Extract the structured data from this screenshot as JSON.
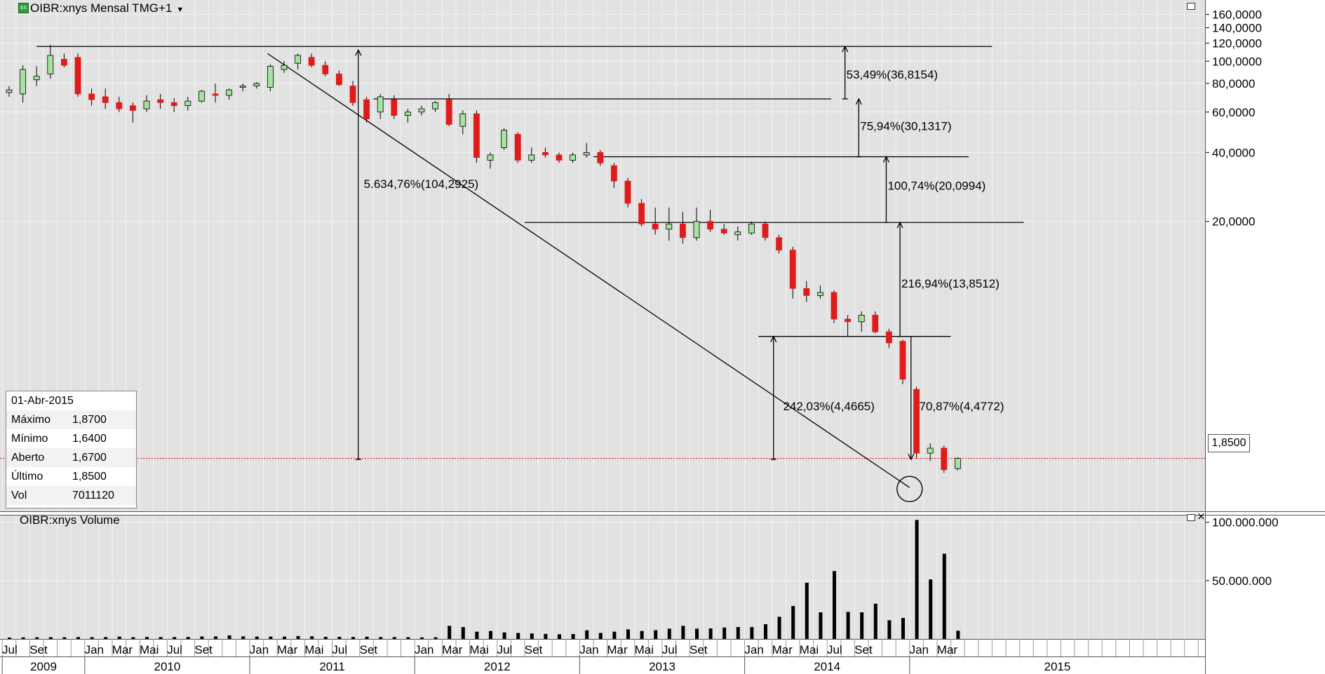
{
  "window": {
    "title": "OIBR:xnys Mensal TMG+1",
    "volume_title": "OIBR:xnys Volume",
    "dropdown_icon": "chevron-down-icon",
    "maximize_icon": "maximize-icon",
    "close_icon": "close-icon",
    "close_glyph": "×"
  },
  "info_box": {
    "date": "01-Abr-2015",
    "rows": [
      {
        "label": "Máximo",
        "value": "1,8700"
      },
      {
        "label": "Mínimo",
        "value": "1,6400"
      },
      {
        "label": "Aberto",
        "value": "1,6700"
      },
      {
        "label": "Último",
        "value": "1,8500"
      },
      {
        "label": "Vol",
        "value": "7011120"
      }
    ]
  },
  "last_price_label": "1,8500",
  "colors": {
    "up": "#a7e3a0",
    "down": "#e01b1b",
    "background": "#e2e2e2",
    "grid": "#f4f4f4",
    "last_line": "#e00000"
  },
  "chart_data": [
    {
      "type": "candlestick",
      "title": "OIBR:xnys Mensal TMG+1",
      "scale": "log",
      "ylim": [
        1.2,
        170
      ],
      "yticks": [
        {
          "value": 160,
          "label": "160,0000"
        },
        {
          "value": 140,
          "label": "140,0000"
        },
        {
          "value": 120,
          "label": "120,0000"
        },
        {
          "value": 100,
          "label": "100,0000"
        },
        {
          "value": 80,
          "label": "80,0000"
        },
        {
          "value": 60,
          "label": "60,0000"
        },
        {
          "value": 40,
          "label": "40,0000"
        },
        {
          "value": 20,
          "label": "20,0000"
        }
      ],
      "x_month_labels": [
        {
          "i": 0,
          "label": "Jul"
        },
        {
          "i": 2,
          "label": "Set"
        },
        {
          "i": 6,
          "label": "Jan"
        },
        {
          "i": 8,
          "label": "Mar"
        },
        {
          "i": 10,
          "label": "Mai"
        },
        {
          "i": 12,
          "label": "Jul"
        },
        {
          "i": 14,
          "label": "Set"
        },
        {
          "i": 18,
          "label": "Jan"
        },
        {
          "i": 20,
          "label": "Mar"
        },
        {
          "i": 22,
          "label": "Mai"
        },
        {
          "i": 24,
          "label": "Jul"
        },
        {
          "i": 26,
          "label": "Set"
        },
        {
          "i": 30,
          "label": "Jan"
        },
        {
          "i": 32,
          "label": "Mar"
        },
        {
          "i": 34,
          "label": "Mai"
        },
        {
          "i": 36,
          "label": "Jul"
        },
        {
          "i": 38,
          "label": "Set"
        },
        {
          "i": 42,
          "label": "Jan"
        },
        {
          "i": 44,
          "label": "Mar"
        },
        {
          "i": 46,
          "label": "Mai"
        },
        {
          "i": 48,
          "label": "Jul"
        },
        {
          "i": 50,
          "label": "Set"
        },
        {
          "i": 54,
          "label": "Jan"
        },
        {
          "i": 56,
          "label": "Mar"
        },
        {
          "i": 58,
          "label": "Mai"
        },
        {
          "i": 60,
          "label": "Jul"
        },
        {
          "i": 62,
          "label": "Set"
        },
        {
          "i": 66,
          "label": "Jan"
        },
        {
          "i": 68,
          "label": "Mar"
        }
      ],
      "x_year_labels": [
        {
          "i_start": 0,
          "i_end": 5,
          "label": "2009"
        },
        {
          "i_start": 6,
          "i_end": 17,
          "label": "2010"
        },
        {
          "i_start": 18,
          "i_end": 29,
          "label": "2011"
        },
        {
          "i_start": 30,
          "i_end": 41,
          "label": "2012"
        },
        {
          "i_start": 42,
          "i_end": 53,
          "label": "2013"
        },
        {
          "i_start": 54,
          "i_end": 65,
          "label": "2014"
        },
        {
          "i_start": 66,
          "i_end": 89,
          "label": "2015"
        }
      ],
      "months_total": 89,
      "candles": [
        {
          "o": 73,
          "h": 78,
          "l": 70,
          "c": 75
        },
        {
          "o": 72,
          "h": 96,
          "l": 66,
          "c": 92
        },
        {
          "o": 83,
          "h": 95,
          "l": 78,
          "c": 86
        },
        {
          "o": 88,
          "h": 118,
          "l": 84,
          "c": 106
        },
        {
          "o": 102,
          "h": 108,
          "l": 94,
          "c": 96
        },
        {
          "o": 104,
          "h": 108,
          "l": 70,
          "c": 72
        },
        {
          "o": 72,
          "h": 76,
          "l": 64,
          "c": 68
        },
        {
          "o": 70,
          "h": 76,
          "l": 62,
          "c": 66
        },
        {
          "o": 66,
          "h": 70,
          "l": 60,
          "c": 62
        },
        {
          "o": 64,
          "h": 66,
          "l": 54,
          "c": 61
        },
        {
          "o": 62,
          "h": 71,
          "l": 60,
          "c": 67
        },
        {
          "o": 68,
          "h": 72,
          "l": 62,
          "c": 66
        },
        {
          "o": 66,
          "h": 69,
          "l": 60,
          "c": 64
        },
        {
          "o": 64,
          "h": 70,
          "l": 61,
          "c": 67
        },
        {
          "o": 67,
          "h": 75,
          "l": 66,
          "c": 74
        },
        {
          "o": 72,
          "h": 80,
          "l": 66,
          "c": 71
        },
        {
          "o": 71,
          "h": 76,
          "l": 68,
          "c": 75
        },
        {
          "o": 77,
          "h": 80,
          "l": 74,
          "c": 78
        },
        {
          "o": 78,
          "h": 81,
          "l": 76,
          "c": 80
        },
        {
          "o": 77,
          "h": 97,
          "l": 74,
          "c": 95
        },
        {
          "o": 92,
          "h": 100,
          "l": 89,
          "c": 96
        },
        {
          "o": 98,
          "h": 108,
          "l": 92,
          "c": 106
        },
        {
          "o": 104,
          "h": 108,
          "l": 94,
          "c": 96
        },
        {
          "o": 96,
          "h": 100,
          "l": 86,
          "c": 88
        },
        {
          "o": 88,
          "h": 91,
          "l": 78,
          "c": 79
        },
        {
          "o": 78,
          "h": 82,
          "l": 64,
          "c": 66
        },
        {
          "o": 68,
          "h": 70,
          "l": 54,
          "c": 56
        },
        {
          "o": 60,
          "h": 72,
          "l": 56,
          "c": 70
        },
        {
          "o": 68,
          "h": 71,
          "l": 56,
          "c": 58
        },
        {
          "o": 58,
          "h": 62,
          "l": 54,
          "c": 60
        },
        {
          "o": 60,
          "h": 64,
          "l": 58,
          "c": 62
        },
        {
          "o": 62,
          "h": 67,
          "l": 60,
          "c": 66
        },
        {
          "o": 68,
          "h": 72,
          "l": 52,
          "c": 53
        },
        {
          "o": 52,
          "h": 61,
          "l": 48,
          "c": 59
        },
        {
          "o": 59,
          "h": 61,
          "l": 36,
          "c": 38
        },
        {
          "o": 37,
          "h": 40,
          "l": 34,
          "c": 39
        },
        {
          "o": 42,
          "h": 51,
          "l": 41,
          "c": 50
        },
        {
          "o": 48,
          "h": 49,
          "l": 36,
          "c": 37
        },
        {
          "o": 37,
          "h": 42,
          "l": 36,
          "c": 39
        },
        {
          "o": 40,
          "h": 42,
          "l": 38,
          "c": 39
        },
        {
          "o": 39,
          "h": 40,
          "l": 36,
          "c": 37
        },
        {
          "o": 37,
          "h": 40,
          "l": 36,
          "c": 39
        },
        {
          "o": 39,
          "h": 44,
          "l": 38,
          "c": 40
        },
        {
          "o": 40,
          "h": 41,
          "l": 35,
          "c": 36
        },
        {
          "o": 35,
          "h": 36,
          "l": 28,
          "c": 30
        },
        {
          "o": 30,
          "h": 31,
          "l": 23,
          "c": 24
        },
        {
          "o": 24,
          "h": 25,
          "l": 19,
          "c": 19.5
        },
        {
          "o": 19.5,
          "h": 23,
          "l": 17.5,
          "c": 18.5
        },
        {
          "o": 18.5,
          "h": 23,
          "l": 16.5,
          "c": 19.5
        },
        {
          "o": 19.5,
          "h": 22,
          "l": 16,
          "c": 17
        },
        {
          "o": 17,
          "h": 23,
          "l": 16.5,
          "c": 20
        },
        {
          "o": 20,
          "h": 22.5,
          "l": 18,
          "c": 18.5
        },
        {
          "o": 18.5,
          "h": 19.5,
          "l": 17.5,
          "c": 17.8
        },
        {
          "o": 17.5,
          "h": 19,
          "l": 16.5,
          "c": 18
        },
        {
          "o": 17.8,
          "h": 20,
          "l": 17.5,
          "c": 19.5
        },
        {
          "o": 19.5,
          "h": 20,
          "l": 16.5,
          "c": 17
        },
        {
          "o": 17,
          "h": 17.5,
          "l": 14.5,
          "c": 15
        },
        {
          "o": 15,
          "h": 15.5,
          "l": 9.2,
          "c": 10.2
        },
        {
          "o": 10.2,
          "h": 11,
          "l": 8.9,
          "c": 9.5
        },
        {
          "o": 9.5,
          "h": 10.5,
          "l": 9.2,
          "c": 9.8
        },
        {
          "o": 9.8,
          "h": 10,
          "l": 7.2,
          "c": 7.5
        },
        {
          "o": 7.5,
          "h": 7.8,
          "l": 6.3,
          "c": 7.3
        },
        {
          "o": 7.3,
          "h": 8.1,
          "l": 6.6,
          "c": 7.8
        },
        {
          "o": 7.8,
          "h": 8.1,
          "l": 6.5,
          "c": 6.6
        },
        {
          "o": 6.6,
          "h": 6.8,
          "l": 5.6,
          "c": 5.9
        },
        {
          "o": 6.0,
          "h": 6.1,
          "l": 3.9,
          "c": 4.1
        },
        {
          "o": 3.7,
          "h": 3.8,
          "l": 1.85,
          "c": 1.95
        },
        {
          "o": 1.95,
          "h": 2.15,
          "l": 1.8,
          "c": 2.05
        },
        {
          "o": 2.05,
          "h": 2.1,
          "l": 1.6,
          "c": 1.65
        },
        {
          "o": 1.67,
          "h": 1.87,
          "l": 1.64,
          "c": 1.85
        }
      ],
      "horizontal_lines": [
        {
          "value": 116,
          "i_start": 2.0,
          "i_end": 71.5
        },
        {
          "value": 68.5,
          "i_start": 26.5,
          "i_end": 59.8
        },
        {
          "value": 38.3,
          "i_start": 42.5,
          "i_end": 69.8
        },
        {
          "value": 19.8,
          "i_start": 37.5,
          "i_end": 73.8
        },
        {
          "value": 6.3,
          "i_start": 54.5,
          "i_end": 68.5
        }
      ],
      "trendline": {
        "i1": 18.8,
        "v1": 108,
        "i2": 65.5,
        "v2": 1.38
      },
      "circle": {
        "i": 65.5,
        "value": 1.36
      },
      "arrows": [
        {
          "i": 25.4,
          "from": 1.83,
          "to": 112
        },
        {
          "i": 60.8,
          "from": 68.5,
          "to": 116
        },
        {
          "i": 61.8,
          "from": 38.3,
          "to": 68.5
        },
        {
          "i": 63.8,
          "from": 19.8,
          "to": 38.3
        },
        {
          "i": 64.8,
          "from": 6.3,
          "to": 19.8
        },
        {
          "i": 55.6,
          "from": 1.83,
          "to": 6.3
        },
        {
          "i": 65.6,
          "from": 6.3,
          "to": 1.83
        }
      ],
      "annotations": [
        {
          "text": "5.634,76%(104,2925)",
          "i": 25.8,
          "value": 28
        },
        {
          "text": "53,49%(36,8154)",
          "i": 60.9,
          "value": 84
        },
        {
          "text": "75,94%(30,1317)",
          "i": 61.9,
          "value": 50
        },
        {
          "text": "100,74%(20,0994)",
          "i": 63.9,
          "value": 27.5
        },
        {
          "text": "216,94%(13,8512)",
          "i": 64.9,
          "value": 10.3
        },
        {
          "text": "242,03%(4,4665)",
          "i": 56.3,
          "value": 3.0
        },
        {
          "text": "70,87%(4,4772)",
          "i": 66.2,
          "value": 3.0
        }
      ],
      "last_value": 1.85
    },
    {
      "type": "bar",
      "title": "OIBR:xnys Volume",
      "ylim": [
        0,
        104000000
      ],
      "yticks": [
        {
          "value": 100000000,
          "label": "100.000.000"
        },
        {
          "value": 50000000,
          "label": "50.000.000"
        }
      ],
      "values": [
        1200000,
        1300000,
        1400000,
        1500000,
        1400000,
        1600000,
        1500000,
        1600000,
        2000000,
        1500000,
        1700000,
        1600000,
        1600000,
        1700000,
        2100000,
        2200000,
        3000000,
        2200000,
        2000000,
        2000000,
        2000000,
        2500000,
        2300000,
        1800000,
        1800000,
        1700000,
        1900000,
        1600000,
        1600000,
        1500000,
        1300000,
        1400000,
        11200000,
        10200000,
        6200000,
        6800000,
        5600000,
        5100000,
        4700000,
        4300000,
        4000000,
        4200000,
        7400000,
        5100000,
        6200000,
        8200000,
        6800000,
        7500000,
        8800000,
        11200000,
        8800000,
        9000000,
        9800000,
        10200000,
        10200000,
        12600000,
        19000000,
        28200000,
        48200000,
        22800000,
        58200000,
        23200000,
        22800000,
        30200000,
        16000000,
        18000000,
        102000000,
        51000000,
        73000000,
        7000000
      ]
    }
  ]
}
